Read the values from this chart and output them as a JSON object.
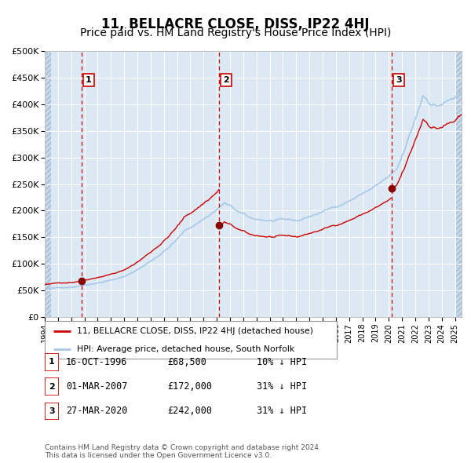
{
  "title": "11, BELLACRE CLOSE, DISS, IP22 4HJ",
  "subtitle": "Price paid vs. HM Land Registry's House Price Index (HPI)",
  "background_color": "#dce9f5",
  "grid_color": "#ffffff",
  "ylim": [
    0,
    500000
  ],
  "yticks": [
    0,
    50000,
    100000,
    150000,
    200000,
    250000,
    300000,
    350000,
    400000,
    450000,
    500000
  ],
  "ytick_labels": [
    "£0",
    "£50K",
    "£100K",
    "£150K",
    "£200K",
    "£250K",
    "£300K",
    "£350K",
    "£400K",
    "£450K",
    "£500K"
  ],
  "xlim_start": 1994.0,
  "xlim_end": 2025.5,
  "xtick_years": [
    1994,
    1995,
    1996,
    1997,
    1998,
    1999,
    2000,
    2001,
    2002,
    2003,
    2004,
    2005,
    2006,
    2007,
    2008,
    2009,
    2010,
    2011,
    2012,
    2013,
    2014,
    2015,
    2016,
    2017,
    2018,
    2019,
    2020,
    2021,
    2022,
    2023,
    2024,
    2025
  ],
  "hpi_color": "#a8c8e8",
  "price_color": "#cc0000",
  "sale_marker_color": "#880000",
  "vline_color": "#cc0000",
  "legend_label_red": "11, BELLACRE CLOSE, DISS, IP22 4HJ (detached house)",
  "legend_label_blue": "HPI: Average price, detached house, South Norfolk",
  "sales": [
    {
      "num": 1,
      "date_x": 1996.79,
      "price": 68500
    },
    {
      "num": 2,
      "date_x": 2007.17,
      "price": 172000
    },
    {
      "num": 3,
      "date_x": 2020.23,
      "price": 242000
    }
  ],
  "table_rows": [
    {
      "num": 1,
      "date": "16-OCT-1996",
      "price": "£68,500",
      "info": "10% ↓ HPI"
    },
    {
      "num": 2,
      "date": "01-MAR-2007",
      "price": "£172,000",
      "info": "31% ↓ HPI"
    },
    {
      "num": 3,
      "date": "27-MAR-2020",
      "price": "£242,000",
      "info": "31% ↓ HPI"
    }
  ],
  "footer": "Contains HM Land Registry data © Crown copyright and database right 2024.\nThis data is licensed under the Open Government Licence v3.0.",
  "title_fontsize": 12,
  "subtitle_fontsize": 10
}
